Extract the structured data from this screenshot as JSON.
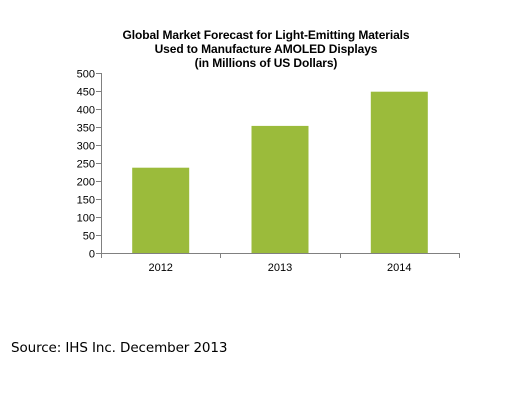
{
  "chart_data": {
    "type": "bar",
    "title_lines": [
      "Global Market Forecast for Light-Emitting Materials",
      "Used to Manufacture AMOLED Displays",
      "(in Millions of US Dollars)"
    ],
    "categories": [
      "2012",
      "2013",
      "2014"
    ],
    "values": [
      237,
      353,
      448
    ],
    "ylim": [
      0,
      500
    ],
    "ytick_step": 50,
    "grid": false,
    "legend": "none",
    "bar_color": "#9BBB3B",
    "axis_color": "#808080"
  },
  "source": "Source: IHS Inc. December 2013"
}
